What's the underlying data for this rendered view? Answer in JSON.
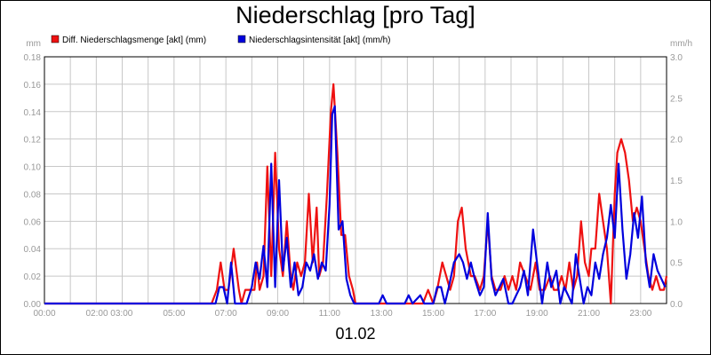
{
  "chart_data": {
    "type": "line",
    "title": "Niederschlag [pro Tag]",
    "date_label": "01.02",
    "y_left_unit": "mm",
    "y_right_unit": "mm/h",
    "y_left_lim": [
      0,
      0.18
    ],
    "y_right_lim": [
      0,
      3.0
    ],
    "x_lim": [
      0,
      24
    ],
    "grid": true,
    "legend_position": "top-left",
    "x_ticks": [
      {
        "label": "00:00",
        "x": 0
      },
      {
        "label": "02:00 03:00",
        "x": 2.5
      },
      {
        "label": "05:00",
        "x": 5
      },
      {
        "label": "07:00",
        "x": 7
      },
      {
        "label": "09:00",
        "x": 9
      },
      {
        "label": "11:00",
        "x": 11
      },
      {
        "label": "13:00",
        "x": 13
      },
      {
        "label": "15:00",
        "x": 15
      },
      {
        "label": "17:00",
        "x": 17
      },
      {
        "label": "19:00",
        "x": 19
      },
      {
        "label": "21:00",
        "x": 21
      },
      {
        "label": "23:00",
        "x": 23
      }
    ],
    "y_left_ticks": [
      "0.00",
      "0.02",
      "0.04",
      "0.06",
      "0.08",
      "0.10",
      "0.12",
      "0.14",
      "0.16",
      "0.18"
    ],
    "y_right_ticks": [
      "0.0",
      "0.5",
      "1.0",
      "1.5",
      "2.0",
      "2.5",
      "3.0"
    ],
    "series": [
      {
        "name": "Diff. Niederschlagsmenge [akt] (mm)",
        "axis": "left",
        "color": "#ee1111",
        "x": [
          0,
          6.45,
          6.65,
          6.8,
          6.95,
          7.1,
          7.3,
          7.5,
          7.6,
          7.75,
          7.95,
          8.1,
          8.2,
          8.3,
          8.45,
          8.6,
          8.75,
          8.9,
          9.05,
          9.2,
          9.35,
          9.5,
          9.6,
          9.75,
          9.9,
          10.05,
          10.2,
          10.35,
          10.5,
          10.6,
          10.75,
          10.9,
          11.05,
          11.15,
          11.3,
          11.45,
          11.6,
          11.75,
          11.9,
          12.0,
          14.2,
          14.45,
          14.6,
          14.8,
          15.0,
          15.15,
          15.35,
          15.5,
          15.65,
          15.8,
          15.95,
          16.1,
          16.25,
          16.45,
          16.6,
          16.8,
          16.95,
          17.1,
          17.25,
          17.4,
          17.6,
          17.75,
          17.9,
          18.05,
          18.2,
          18.35,
          18.55,
          18.75,
          18.95,
          19.1,
          19.3,
          19.5,
          19.65,
          19.8,
          19.95,
          20.1,
          20.25,
          20.4,
          20.55,
          20.7,
          20.85,
          21.0,
          21.1,
          21.25,
          21.4,
          21.55,
          21.7,
          21.85,
          22.0,
          22.1,
          22.25,
          22.4,
          22.55,
          22.7,
          22.85,
          23.0,
          23.15,
          23.3,
          23.45,
          23.6,
          23.75,
          23.9,
          24.0
        ],
        "values": [
          0,
          0,
          0.01,
          0.03,
          0.01,
          0.01,
          0.04,
          0.01,
          0,
          0.01,
          0.01,
          0.01,
          0.03,
          0.01,
          0.02,
          0.1,
          0.02,
          0.11,
          0.04,
          0.02,
          0.06,
          0.02,
          0.01,
          0.03,
          0.02,
          0.03,
          0.08,
          0.03,
          0.07,
          0.02,
          0.03,
          0.08,
          0.14,
          0.16,
          0.11,
          0.05,
          0.05,
          0.02,
          0.01,
          0,
          0,
          0,
          0,
          0.01,
          0,
          0.01,
          0.03,
          0.02,
          0.01,
          0.02,
          0.06,
          0.07,
          0.04,
          0.02,
          0.02,
          0.01,
          0.02,
          0.06,
          0.02,
          0.01,
          0.01,
          0.02,
          0.01,
          0.02,
          0.01,
          0.03,
          0.02,
          0.01,
          0.03,
          0.01,
          0.01,
          0.02,
          0.01,
          0.01,
          0.02,
          0.01,
          0.03,
          0.01,
          0.02,
          0.06,
          0.03,
          0.02,
          0.04,
          0.04,
          0.08,
          0.06,
          0.04,
          0,
          0.08,
          0.11,
          0.12,
          0.11,
          0.09,
          0.06,
          0.07,
          0.06,
          0.04,
          0.02,
          0.01,
          0.02,
          0.01,
          0.01,
          0.02
        ]
      },
      {
        "name": "Niederschlagsintensität [akt] (mm/h)",
        "axis": "right",
        "color": "#0000dd",
        "x": [
          0,
          6.6,
          6.75,
          6.9,
          7.05,
          7.2,
          7.35,
          7.5,
          7.65,
          7.8,
          8.0,
          8.15,
          8.3,
          8.45,
          8.6,
          8.75,
          8.9,
          9.05,
          9.2,
          9.35,
          9.5,
          9.65,
          9.8,
          9.95,
          10.1,
          10.25,
          10.4,
          10.55,
          10.7,
          10.85,
          11.0,
          11.1,
          11.2,
          11.35,
          11.5,
          11.65,
          11.8,
          11.95,
          12.5,
          12.9,
          13.05,
          13.2,
          13.4,
          13.6,
          13.9,
          14.05,
          14.2,
          14.5,
          14.65,
          14.8,
          15.0,
          15.15,
          15.3,
          15.45,
          15.6,
          15.8,
          16.0,
          16.15,
          16.3,
          16.45,
          16.6,
          16.8,
          16.95,
          17.1,
          17.25,
          17.4,
          17.55,
          17.7,
          17.9,
          18.05,
          18.2,
          18.35,
          18.5,
          18.65,
          18.85,
          19.0,
          19.2,
          19.4,
          19.55,
          19.75,
          19.9,
          20.05,
          20.2,
          20.35,
          20.5,
          20.65,
          20.8,
          20.95,
          21.1,
          21.25,
          21.4,
          21.55,
          21.7,
          21.85,
          22.0,
          22.15,
          22.3,
          22.45,
          22.6,
          22.75,
          22.9,
          23.05,
          23.2,
          23.35,
          23.5,
          23.65,
          23.8,
          23.95
        ],
        "values": [
          0,
          0,
          0.2,
          0.2,
          0,
          0.5,
          0,
          0,
          0,
          0,
          0.2,
          0.5,
          0.3,
          0.7,
          0.2,
          1.7,
          0.2,
          1.5,
          0.4,
          0.8,
          0.2,
          0.5,
          0.1,
          0.2,
          0.5,
          0.4,
          0.6,
          0.3,
          0.5,
          0.4,
          1.2,
          2.3,
          2.4,
          0.9,
          1.0,
          0.3,
          0.1,
          0,
          0,
          0,
          0.1,
          0,
          0,
          0,
          0,
          0.1,
          0,
          0.1,
          0,
          0,
          0,
          0.2,
          0.2,
          0,
          0.2,
          0.5,
          0.6,
          0.5,
          0.3,
          0.5,
          0.3,
          0.1,
          0.2,
          1.1,
          0.3,
          0.1,
          0.2,
          0.3,
          0,
          0,
          0.1,
          0.2,
          0.4,
          0.1,
          0.9,
          0.5,
          0,
          0.5,
          0.2,
          0.4,
          0,
          0.2,
          0.1,
          0,
          0.6,
          0.3,
          0,
          0.2,
          0.1,
          0.5,
          0.3,
          0.6,
          0.8,
          1.2,
          0.8,
          1.7,
          0.9,
          0.3,
          0.6,
          1.1,
          0.8,
          1.3,
          0.5,
          0.2,
          0.6,
          0.4,
          0.3,
          0.2
        ]
      }
    ]
  }
}
